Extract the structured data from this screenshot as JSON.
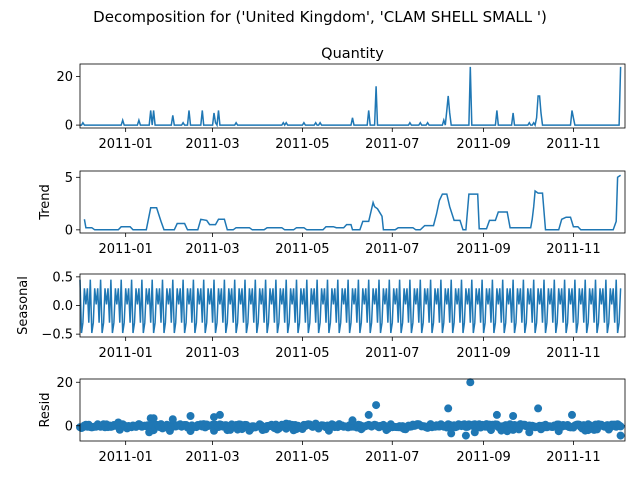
{
  "title": "Decomposition for ('United Kingdom', 'CLAM SHELL SMALL ')",
  "line_color": "#1f77b4",
  "chart_data": [
    {
      "type": "line",
      "title": "Quantity",
      "ylabel": "",
      "ylim": [
        -1.2,
        25.2
      ],
      "yticks": [
        0,
        20
      ],
      "xlim": [
        0,
        370
      ],
      "x_tick_labels": [
        "2011-01",
        "2011-03",
        "2011-05",
        "2011-07",
        "2011-09",
        "2011-11"
      ],
      "x_tick_days": [
        31,
        90,
        151,
        212,
        274,
        335
      ],
      "x_start": "2010-12-01",
      "events": [
        [
          2,
          1
        ],
        [
          29,
          2
        ],
        [
          40,
          2
        ],
        [
          48,
          6
        ],
        [
          50,
          6
        ],
        [
          63,
          4
        ],
        [
          70,
          1
        ],
        [
          74,
          6
        ],
        [
          83,
          6
        ],
        [
          91,
          5
        ],
        [
          92,
          1
        ],
        [
          94,
          6
        ],
        [
          106,
          1
        ],
        [
          138,
          1
        ],
        [
          140,
          1
        ],
        [
          152,
          1
        ],
        [
          160,
          1
        ],
        [
          163,
          1
        ],
        [
          185,
          3
        ],
        [
          196,
          6
        ],
        [
          201,
          16
        ],
        [
          224,
          1
        ],
        [
          231,
          1
        ],
        [
          236,
          1
        ],
        [
          247,
          2
        ],
        [
          249,
          6
        ],
        [
          250,
          12
        ],
        [
          251,
          5
        ],
        [
          265,
          24
        ],
        [
          283,
          6
        ],
        [
          294,
          5
        ],
        [
          305,
          1
        ],
        [
          308,
          1
        ],
        [
          310,
          3
        ],
        [
          311,
          12
        ],
        [
          312,
          12
        ],
        [
          313,
          5
        ],
        [
          334,
          6
        ],
        [
          335,
          3
        ],
        [
          367,
          24
        ]
      ]
    },
    {
      "type": "line",
      "title": "",
      "ylabel": "Trend",
      "ylim": [
        -0.3,
        5.6
      ],
      "yticks": [
        0,
        5
      ],
      "xlim": [
        0,
        370
      ],
      "trend": [
        [
          3,
          1.0
        ],
        [
          4,
          0.2
        ],
        [
          8,
          0.2
        ],
        [
          10,
          0.0
        ],
        [
          26,
          0.0
        ],
        [
          28,
          0.3
        ],
        [
          34,
          0.3
        ],
        [
          36,
          0.0
        ],
        [
          45,
          0.0
        ],
        [
          48,
          2.1
        ],
        [
          52,
          2.1
        ],
        [
          55,
          0.8
        ],
        [
          57,
          0.0
        ],
        [
          64,
          0.0
        ],
        [
          66,
          0.6
        ],
        [
          71,
          0.6
        ],
        [
          73,
          0.0
        ],
        [
          80,
          0.0
        ],
        [
          82,
          1.0
        ],
        [
          86,
          0.9
        ],
        [
          88,
          0.5
        ],
        [
          92,
          0.5
        ],
        [
          94,
          1.0
        ],
        [
          98,
          1.0
        ],
        [
          100,
          0.0
        ],
        [
          104,
          0.0
        ],
        [
          106,
          0.2
        ],
        [
          115,
          0.2
        ],
        [
          117,
          0.0
        ],
        [
          125,
          0.0
        ],
        [
          127,
          0.2
        ],
        [
          137,
          0.2
        ],
        [
          139,
          0.0
        ],
        [
          145,
          0.0
        ],
        [
          147,
          0.2
        ],
        [
          152,
          0.2
        ],
        [
          154,
          0.0
        ],
        [
          165,
          0.0
        ],
        [
          167,
          0.3
        ],
        [
          172,
          0.3
        ],
        [
          174,
          0.2
        ],
        [
          179,
          0.2
        ],
        [
          181,
          0.5
        ],
        [
          184,
          0.5
        ],
        [
          185,
          0.0
        ],
        [
          190,
          0.0
        ],
        [
          192,
          0.8
        ],
        [
          196,
          0.8
        ],
        [
          199,
          2.6
        ],
        [
          200,
          2.2
        ],
        [
          202,
          2.0
        ],
        [
          205,
          1.3
        ],
        [
          206,
          0.0
        ],
        [
          214,
          0.0
        ],
        [
          216,
          0.2
        ],
        [
          226,
          0.2
        ],
        [
          228,
          0.0
        ],
        [
          231,
          0.0
        ],
        [
          234,
          0.4
        ],
        [
          240,
          0.4
        ],
        [
          242,
          1.5
        ],
        [
          244,
          2.8
        ],
        [
          246,
          3.4
        ],
        [
          249,
          3.4
        ],
        [
          251,
          2.2
        ],
        [
          254,
          0.9
        ],
        [
          258,
          0.9
        ],
        [
          260,
          0.0
        ],
        [
          262,
          0.0
        ],
        [
          264,
          3.4
        ],
        [
          270,
          3.4
        ],
        [
          271,
          0.1
        ],
        [
          276,
          0.1
        ],
        [
          278,
          0.9
        ],
        [
          282,
          0.9
        ],
        [
          284,
          1.7
        ],
        [
          290,
          1.7
        ],
        [
          292,
          0.2
        ],
        [
          306,
          0.2
        ],
        [
          307,
          1.0
        ],
        [
          308,
          2.2
        ],
        [
          309,
          3.7
        ],
        [
          311,
          3.5
        ],
        [
          314,
          3.5
        ],
        [
          316,
          0.0
        ],
        [
          325,
          0.0
        ],
        [
          327,
          1.0
        ],
        [
          330,
          1.2
        ],
        [
          333,
          1.2
        ],
        [
          335,
          0.3
        ],
        [
          338,
          0.3
        ],
        [
          340,
          0.0
        ],
        [
          362,
          0.0
        ],
        [
          364,
          0.8
        ],
        [
          365,
          5.0
        ],
        [
          367,
          5.2
        ]
      ]
    },
    {
      "type": "line",
      "title": "",
      "ylabel": "Seasonal",
      "ylim": [
        -0.55,
        0.55
      ],
      "yticks": [
        -0.5,
        0.0,
        0.5
      ],
      "ytick_labels": [
        "−0.5",
        "0.0",
        "0.5"
      ],
      "xlim": [
        0,
        370
      ],
      "period": 7,
      "pattern": [
        0.45,
        -0.48,
        -0.3,
        0.3,
        0.02,
        0.3,
        -0.3
      ]
    },
    {
      "type": "scatter",
      "title": "",
      "ylabel": "Resid",
      "ylim": [
        -7.0,
        21.5
      ],
      "yticks": [
        0,
        20
      ],
      "xlim": [
        0,
        370
      ],
      "outliers": [
        [
          48,
          3.5
        ],
        [
          50,
          3.5
        ],
        [
          63,
          3.0
        ],
        [
          75,
          4.5
        ],
        [
          91,
          4.0
        ],
        [
          95,
          5.0
        ],
        [
          185,
          2.5
        ],
        [
          196,
          5.0
        ],
        [
          201,
          9.5
        ],
        [
          250,
          8.0
        ],
        [
          265,
          20.0
        ],
        [
          283,
          5.0
        ],
        [
          294,
          4.5
        ],
        [
          311,
          8.0
        ],
        [
          334,
          5.0
        ],
        [
          26,
          1.5
        ],
        [
          140,
          1.0
        ],
        [
          160,
          1.0
        ],
        [
          236,
          -1.0
        ],
        [
          47,
          -3.0
        ],
        [
          252,
          -3.5
        ],
        [
          262,
          -4.5
        ],
        [
          268,
          -3.0
        ],
        [
          305,
          -3.0
        ],
        [
          325,
          -2.5
        ],
        [
          367,
          -4.5
        ],
        [
          100,
          -2.0
        ],
        [
          208,
          -2.0
        ],
        [
          290,
          -2.5
        ],
        [
          345,
          -2.0
        ]
      ]
    }
  ]
}
